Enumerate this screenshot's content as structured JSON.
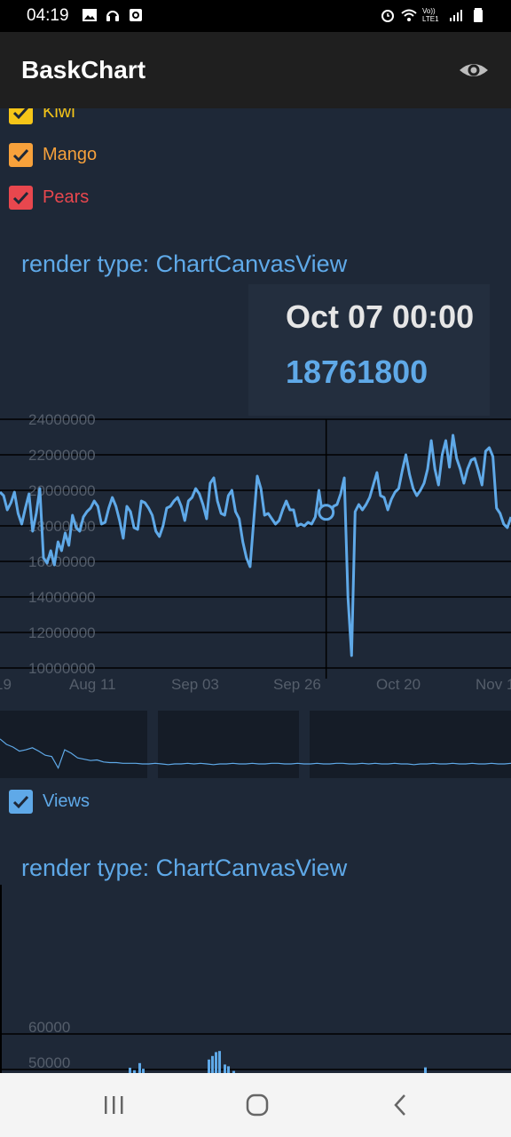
{
  "status_bar": {
    "time": "04:19",
    "icons_left": [
      "image-icon",
      "headset-icon",
      "screen-record-icon"
    ],
    "icons_right": [
      "alarm-icon",
      "wifi-icon",
      "volte-icon",
      "signal-icon",
      "battery-icon"
    ],
    "volte_label": "Vo)) LTE1"
  },
  "appbar": {
    "title": "BaskChart",
    "action_icon": "eye-icon"
  },
  "checkboxes_top": [
    {
      "label": "Kiwi",
      "checked": true,
      "color": "#f5c518"
    },
    {
      "label": "Mango",
      "checked": true,
      "color": "#f7a13b"
    },
    {
      "label": "Pears",
      "checked": true,
      "color": "#e8474e"
    }
  ],
  "section1": {
    "render_type": "render type: ChartCanvasView"
  },
  "tooltip": {
    "date": "Oct 07 00:00",
    "value": "18761800"
  },
  "chart_data": [
    {
      "type": "line",
      "y_tick_labels": [
        "24000000",
        "22000000",
        "20000000",
        "18000000",
        "16000000",
        "14000000",
        "12000000",
        "10000000"
      ],
      "x_tick_labels": [
        "19",
        "Aug 11",
        "Sep 03",
        "Sep 26",
        "Oct 20",
        "Nov 1"
      ],
      "ylim": [
        10000000,
        24000000
      ],
      "series": [
        {
          "color": "#5fa9e8",
          "values": [
            19900000,
            19700000,
            18900000,
            19300000,
            19900000,
            18700000,
            18100000,
            19000000,
            19800000,
            17700000,
            18700000,
            20100000,
            16200000,
            15900000,
            16600000,
            15800000,
            17100000,
            16600000,
            17600000,
            16900000,
            18600000,
            17900000,
            17700000,
            18500000,
            18800000,
            19000000,
            19400000,
            19100000,
            18100000,
            18200000,
            19000000,
            19600000,
            19100000,
            18300000,
            17300000,
            19100000,
            18800000,
            17900000,
            17800000,
            19400000,
            19300000,
            19000000,
            18600000,
            17700000,
            17400000,
            18000000,
            19000000,
            19100000,
            19400000,
            19600000,
            19100000,
            18300000,
            19400000,
            19600000,
            20100000,
            19800000,
            19200000,
            18400000,
            20400000,
            20700000,
            19400000,
            18700000,
            18600000,
            19700000,
            20000000,
            18800000,
            18400000,
            17100000,
            16200000,
            15700000,
            18300000,
            20800000,
            20100000,
            18600000,
            18700000,
            18400000,
            18100000,
            18300000,
            18900000,
            19400000,
            18900000,
            18900000,
            18000000,
            18100000,
            18000000,
            18200000,
            18100000,
            18500000,
            20000000,
            18600000,
            18761800,
            18600000,
            19100000,
            19200000,
            19800000,
            20700000,
            14000000,
            10700000,
            18800000,
            19200000,
            18900000,
            19200000,
            19600000,
            20300000,
            21000000,
            19700000,
            19600000,
            18900000,
            19500000,
            19900000,
            20100000,
            21100000,
            22000000,
            20900000,
            20100000,
            19700000,
            20000000,
            20400000,
            21200000,
            22800000,
            21200000,
            20300000,
            22000000,
            22800000,
            21300000,
            23100000,
            21800000,
            21200000,
            20400000,
            21200000,
            21700000,
            21800000,
            21100000,
            20300000,
            22200000,
            22400000,
            21900000,
            19000000,
            18700000,
            18100000,
            17900000,
            18500000
          ]
        }
      ],
      "highlight": {
        "date": "Oct 07 00:00",
        "value": 18761800
      }
    },
    {
      "type": "bar",
      "y_tick_labels": [
        "60000",
        "50000"
      ],
      "series": [
        {
          "name": "Views",
          "color": "#5fa9e8",
          "values": [
            50500,
            49800,
            51800,
            50200,
            52800,
            53800,
            54900,
            55200,
            51400,
            50900,
            49600,
            50600
          ]
        }
      ]
    }
  ],
  "overview": {
    "line_color": "#5fa9e8",
    "values": [
      0.42,
      0.5,
      0.54,
      0.6,
      0.58,
      0.55,
      0.6,
      0.66,
      0.68,
      0.85,
      0.58,
      0.63,
      0.7,
      0.72,
      0.74,
      0.73,
      0.76,
      0.77,
      0.77,
      0.78,
      0.78,
      0.78,
      0.79,
      0.79,
      0.78,
      0.79,
      0.8,
      0.79,
      0.79,
      0.78,
      0.79,
      0.78,
      0.79,
      0.8,
      0.79,
      0.79,
      0.78,
      0.79,
      0.79,
      0.78,
      0.79,
      0.79,
      0.78,
      0.78,
      0.79,
      0.79,
      0.78,
      0.79,
      0.79,
      0.78,
      0.79,
      0.79,
      0.78,
      0.78,
      0.79,
      0.79,
      0.78,
      0.79,
      0.78,
      0.79,
      0.79,
      0.78,
      0.79,
      0.79,
      0.8,
      0.79,
      0.79,
      0.78,
      0.79,
      0.79,
      0.78,
      0.79,
      0.79,
      0.78,
      0.79,
      0.79,
      0.78,
      0.79,
      0.79,
      0.78
    ]
  },
  "checkbox_views": {
    "label": "Views",
    "checked": true,
    "color": "#5fa9e8"
  },
  "section2": {
    "render_type": "render type: ChartCanvasView"
  },
  "nav": {
    "recents_icon": "recents-icon",
    "home_icon": "home-icon",
    "back_icon": "back-icon"
  },
  "colors": {
    "background": "#1e2837",
    "appbar": "#1f1f1f",
    "grid": "#000000",
    "axis_text": "#555e6b",
    "accent": "#5fa9e8"
  }
}
